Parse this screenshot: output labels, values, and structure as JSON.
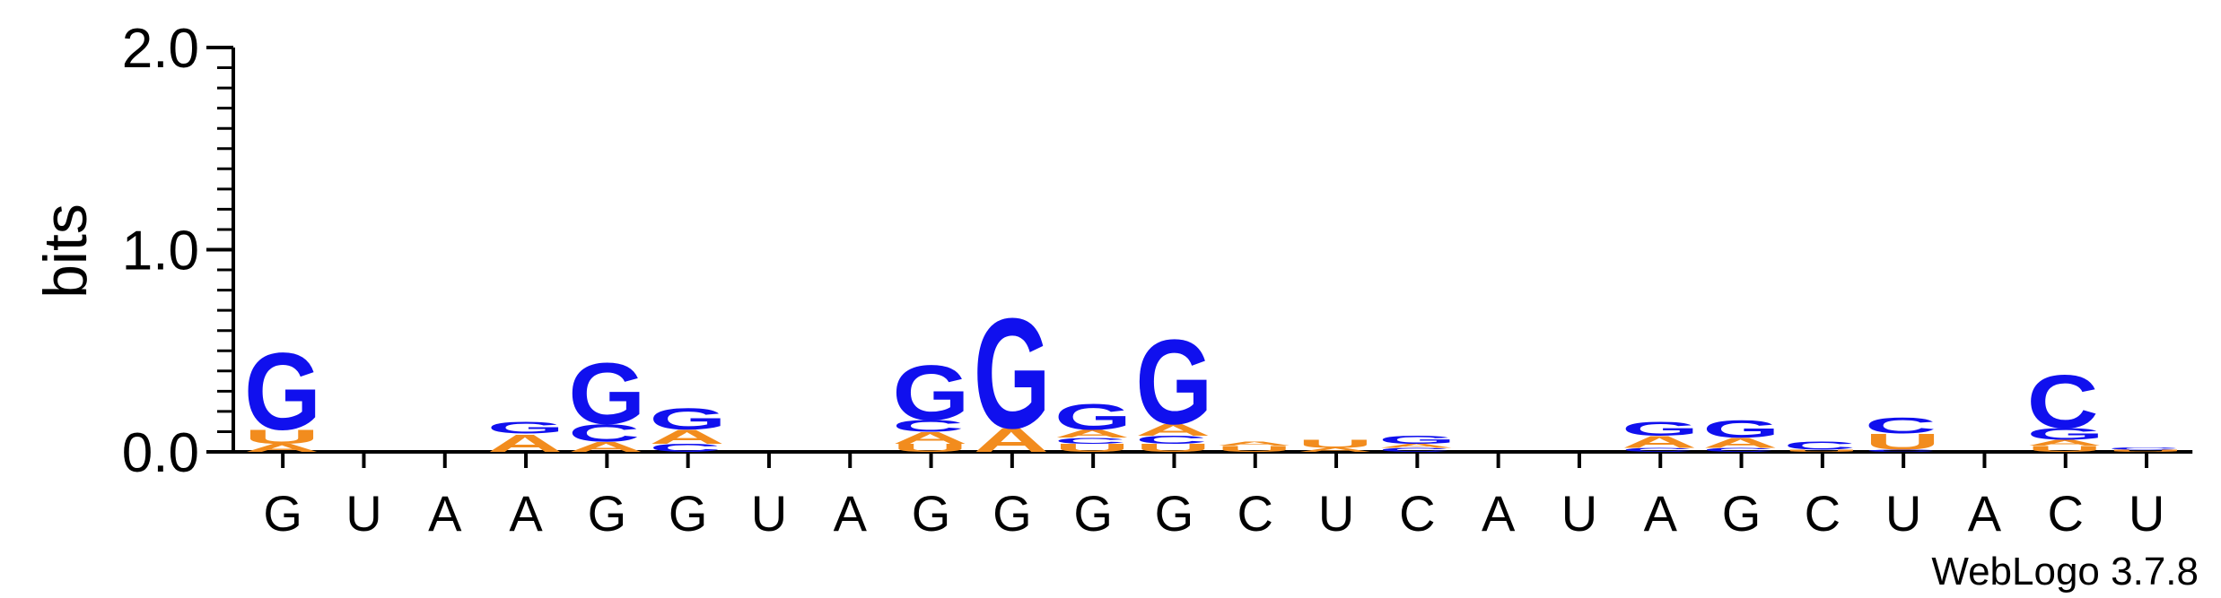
{
  "chart_data": {
    "type": "sequence-logo",
    "ylabel": "bits",
    "ylim": [
      0,
      2.0
    ],
    "yticks": [
      "0.0",
      "1.0",
      "2.0"
    ],
    "credit": "WebLogo 3.7.8",
    "colors": {
      "G": "#1010ee",
      "C": "#1010ee",
      "A": "#f28c1e",
      "U": "#f28c1e"
    },
    "positions": [
      {
        "label": "G",
        "stack": [
          [
            "A",
            0.04
          ],
          [
            "U",
            0.07
          ],
          [
            "G",
            0.39
          ]
        ]
      },
      {
        "label": "U",
        "stack": []
      },
      {
        "label": "A",
        "stack": []
      },
      {
        "label": "A",
        "stack": [
          [
            "A",
            0.09
          ],
          [
            "G",
            0.06
          ]
        ]
      },
      {
        "label": "G",
        "stack": [
          [
            "A",
            0.05
          ],
          [
            "C",
            0.09
          ],
          [
            "G",
            0.31
          ]
        ]
      },
      {
        "label": "G",
        "stack": [
          [
            "C",
            0.04
          ],
          [
            "A",
            0.07
          ],
          [
            "G",
            0.11
          ]
        ]
      },
      {
        "label": "U",
        "stack": []
      },
      {
        "label": "A",
        "stack": []
      },
      {
        "label": "G",
        "stack": [
          [
            "U",
            0.04
          ],
          [
            "A",
            0.06
          ],
          [
            "C",
            0.06
          ],
          [
            "G",
            0.28
          ]
        ]
      },
      {
        "label": "G",
        "stack": [
          [
            "A",
            0.12
          ],
          [
            "G",
            0.56
          ]
        ]
      },
      {
        "label": "G",
        "stack": [
          [
            "U",
            0.04
          ],
          [
            "C",
            0.03
          ],
          [
            "A",
            0.04
          ],
          [
            "G",
            0.13
          ]
        ]
      },
      {
        "label": "G",
        "stack": [
          [
            "U",
            0.04
          ],
          [
            "C",
            0.04
          ],
          [
            "A",
            0.06
          ],
          [
            "G",
            0.43
          ]
        ]
      },
      {
        "label": "C",
        "stack": [
          [
            "U",
            0.03
          ],
          [
            "A",
            0.02
          ]
        ]
      },
      {
        "label": "U",
        "stack": [
          [
            "A",
            0.02
          ],
          [
            "U",
            0.04
          ]
        ]
      },
      {
        "label": "C",
        "stack": [
          [
            "C",
            0.02
          ],
          [
            "A",
            0.02
          ],
          [
            "G",
            0.04
          ]
        ]
      },
      {
        "label": "A",
        "stack": []
      },
      {
        "label": "U",
        "stack": []
      },
      {
        "label": "A",
        "stack": [
          [
            "C",
            0.02
          ],
          [
            "A",
            0.06
          ],
          [
            "G",
            0.07
          ]
        ]
      },
      {
        "label": "G",
        "stack": [
          [
            "C",
            0.02
          ],
          [
            "A",
            0.05
          ],
          [
            "G",
            0.09
          ]
        ]
      },
      {
        "label": "C",
        "stack": [
          [
            "U",
            0.01
          ],
          [
            "C",
            0.04
          ]
        ]
      },
      {
        "label": "U",
        "stack": [
          [
            "C",
            0.01
          ],
          [
            "U",
            0.08
          ],
          [
            "C",
            0.08
          ]
        ]
      },
      {
        "label": "A",
        "stack": []
      },
      {
        "label": "C",
        "stack": [
          [
            "U",
            0.03
          ],
          [
            "A",
            0.03
          ],
          [
            "G",
            0.06
          ],
          [
            "C",
            0.27
          ]
        ]
      },
      {
        "label": "U",
        "stack": [
          [
            "U",
            0.01
          ],
          [
            "C",
            0.01
          ]
        ]
      }
    ]
  }
}
